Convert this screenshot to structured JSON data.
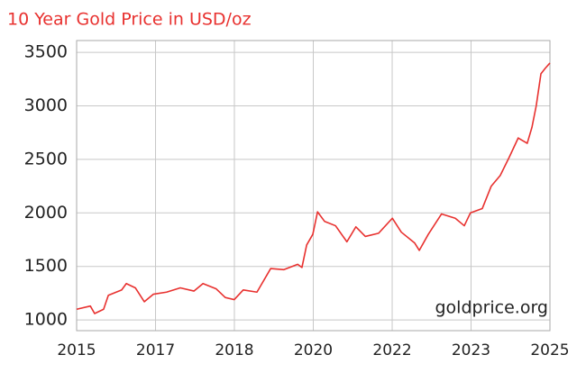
{
  "chart_data": {
    "type": "line",
    "title": "10 Year Gold Price in USD/oz",
    "annotation": "goldprice.org",
    "x": [
      2015.0,
      2015.29,
      2015.38,
      2015.57,
      2015.67,
      2015.95,
      2016.05,
      2016.24,
      2016.43,
      2016.62,
      2016.9,
      2017.19,
      2017.48,
      2017.67,
      2017.95,
      2018.14,
      2018.33,
      2018.52,
      2018.81,
      2019.1,
      2019.38,
      2019.67,
      2019.76,
      2019.86,
      2019.99,
      2020.09,
      2020.24,
      2020.47,
      2020.71,
      2020.9,
      2021.1,
      2021.38,
      2021.67,
      2021.86,
      2022.14,
      2022.24,
      2022.43,
      2022.71,
      2023.0,
      2023.19,
      2023.32,
      2023.57,
      2023.76,
      2023.95,
      2024.14,
      2024.33,
      2024.52,
      2024.62,
      2024.71,
      2024.81,
      2024.9,
      2025.0
    ],
    "series": [
      {
        "name": "Gold price",
        "color": "#e8312f",
        "values": [
          1100,
          1130,
          1060,
          1100,
          1230,
          1280,
          1340,
          1300,
          1170,
          1240,
          1260,
          1300,
          1270,
          1340,
          1290,
          1210,
          1190,
          1280,
          1260,
          1480,
          1470,
          1520,
          1490,
          1700,
          1800,
          2010,
          1920,
          1880,
          1730,
          1870,
          1780,
          1810,
          1950,
          1820,
          1720,
          1650,
          1800,
          1990,
          1950,
          1880,
          2000,
          2040,
          2250,
          2350,
          2520,
          2700,
          2650,
          2800,
          3000,
          3300,
          3350,
          3400
        ]
      }
    ],
    "xlim": [
      2015,
      2025
    ],
    "xticks": [
      2015,
      {
        "value": 2016.667,
        "label": "2017"
      },
      {
        "value": 2018.333,
        "label": "2018"
      },
      2020,
      {
        "value": 2021.667,
        "label": "2022"
      },
      {
        "value": 2023.333,
        "label": "2023"
      },
      2025
    ],
    "ylim": [
      900,
      3610
    ],
    "yticks": [
      1000,
      1500,
      2000,
      2500,
      3000,
      3500
    ],
    "grid": true
  }
}
